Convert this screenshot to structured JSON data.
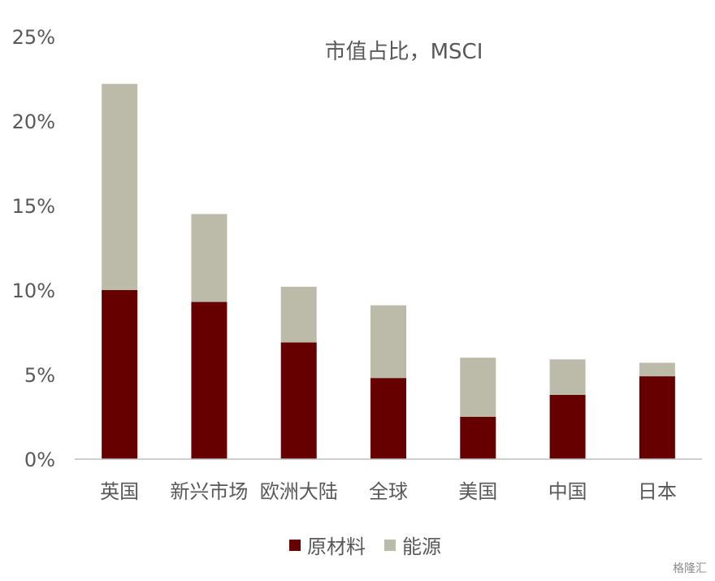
{
  "chart_data": {
    "type": "bar",
    "stacked": true,
    "title": "市值占比，MSCI",
    "categories": [
      "英国",
      "新兴市场",
      "欧洲大陆",
      "全球",
      "美国",
      "中国",
      "日本"
    ],
    "series": [
      {
        "name": "原材料",
        "color": "#660000",
        "values": [
          10.0,
          9.3,
          6.9,
          4.8,
          2.5,
          3.8,
          4.9
        ]
      },
      {
        "name": "能源",
        "color": "#bcbaa9",
        "values": [
          12.2,
          5.2,
          3.3,
          4.3,
          3.5,
          2.1,
          0.8
        ]
      }
    ],
    "yticks": [
      "0%",
      "5%",
      "10%",
      "15%",
      "20%",
      "25%"
    ],
    "ylim": [
      0,
      25
    ],
    "legend_position": "bottom",
    "grid": false
  },
  "watermark": "格隆汇"
}
